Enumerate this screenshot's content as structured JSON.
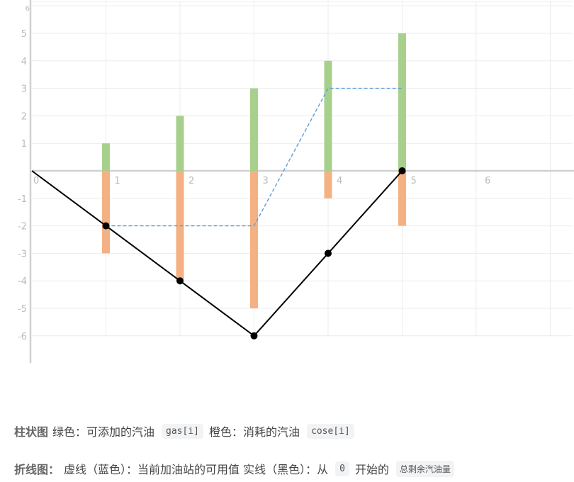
{
  "chart_data": {
    "type": "bar",
    "x_ticks": [
      "0",
      "1",
      "2",
      "3",
      "4",
      "5",
      "6"
    ],
    "y_ticks": [
      "-6",
      "-5",
      "-4",
      "-3",
      "-2",
      "-1",
      "1",
      "2",
      "3",
      "4",
      "5",
      "6"
    ],
    "ylim": [
      -7,
      6
    ],
    "xlim": [
      0,
      7
    ],
    "grid": true,
    "series": [
      {
        "kind": "bar",
        "color": "#a8d08d",
        "x": [
          1,
          2,
          3,
          4,
          5
        ],
        "values": [
          1,
          2,
          3,
          4,
          5
        ]
      },
      {
        "kind": "bar",
        "color": "#f4b183",
        "x": [
          1,
          2,
          3,
          4,
          5
        ],
        "values": [
          -3,
          -4,
          -5,
          -1,
          -2
        ]
      },
      {
        "kind": "line",
        "style": "dashed",
        "color": "#5b9bd5",
        "x": [
          1,
          2,
          3,
          4,
          5
        ],
        "values": [
          -2,
          -2,
          -2,
          3,
          3
        ]
      },
      {
        "kind": "line",
        "style": "solid",
        "color": "#000000",
        "markers": true,
        "x": [
          0,
          1,
          2,
          3,
          4,
          5
        ],
        "values": [
          0,
          -2,
          -4,
          -6,
          -3,
          0
        ]
      }
    ]
  },
  "legend": {
    "bar_title": "柱状图",
    "green_desc": "绿色：可添加的汽油",
    "green_code": "gas[i]",
    "orange_desc": "橙色：消耗的汽油",
    "orange_code": "cose[i]",
    "line_title": "折线图：",
    "dashed_desc": "虚线（蓝色）：当前加油站的可用值 实线（黑色）：从",
    "zero_code": "0",
    "start_desc": "开始的",
    "total_code": "总剩余汽油量"
  }
}
